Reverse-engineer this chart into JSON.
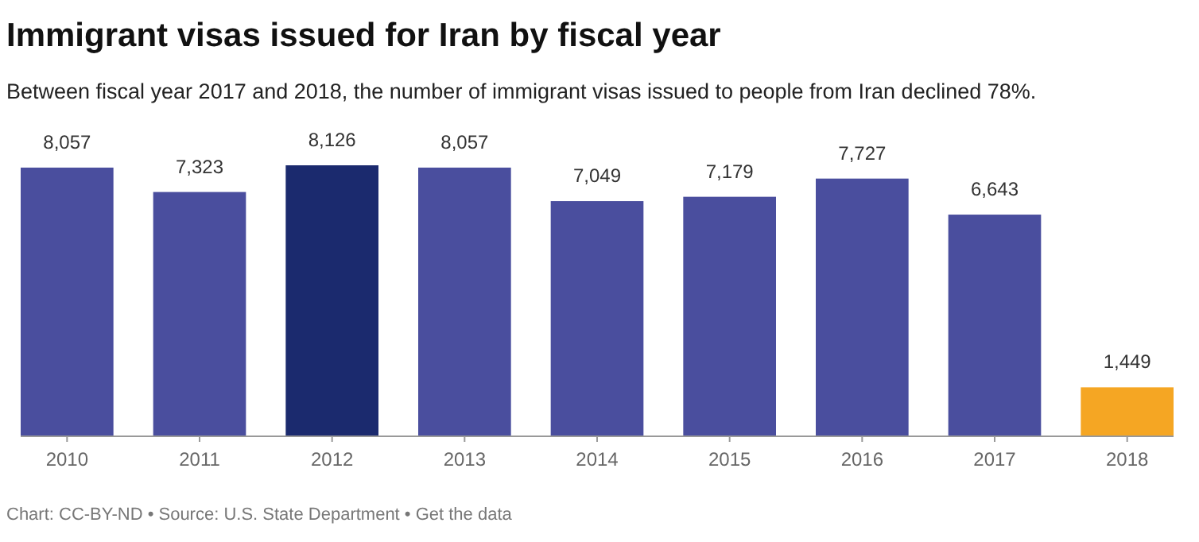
{
  "chart_data": {
    "type": "bar",
    "title": "Immigrant visas issued for Iran by fiscal year",
    "subtitle": "Between fiscal year 2017 and 2018, the number of immigrant visas issued to people from Iran declined 78%.",
    "categories": [
      "2010",
      "2011",
      "2012",
      "2013",
      "2014",
      "2015",
      "2016",
      "2017",
      "2018"
    ],
    "values": [
      8057,
      7323,
      8126,
      8057,
      7049,
      7179,
      7727,
      6643,
      1449
    ],
    "colors": [
      "#4a4e9e",
      "#4a4e9e",
      "#1b2a6e",
      "#4a4e9e",
      "#4a4e9e",
      "#4a4e9e",
      "#4a4e9e",
      "#4a4e9e",
      "#f5a623"
    ],
    "value_labels": [
      "8,057",
      "7,323",
      "8,126",
      "8,057",
      "7,049",
      "7,179",
      "7,727",
      "6,643",
      "1,449"
    ],
    "annotations": [
      "Chart: CC-BY-ND • Source: U.S. State Department • Get the data"
    ]
  }
}
